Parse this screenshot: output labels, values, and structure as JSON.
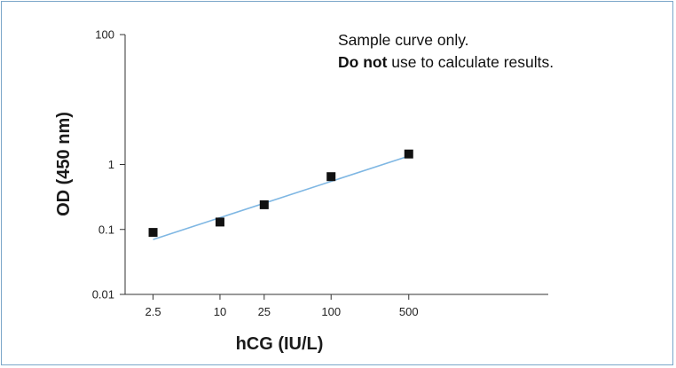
{
  "chart_data": {
    "type": "scatter",
    "xlabel": "hCG (IU/L)",
    "ylabel": "OD (450 nm)",
    "x_scale": "log",
    "y_scale": "log",
    "xlim": [
      1.4,
      9000
    ],
    "ylim": [
      0.01,
      100
    ],
    "x_ticks": [
      2.5,
      10,
      25,
      100,
      500
    ],
    "x_tick_labels": [
      "2.5",
      "10",
      "25",
      "100",
      "500"
    ],
    "y_ticks": [
      0.01,
      0.1,
      1,
      100
    ],
    "y_tick_labels": [
      "0.01",
      "0.1",
      "1",
      "100"
    ],
    "grid": false,
    "points": {
      "x": [
        2.5,
        10,
        25,
        100,
        500
      ],
      "y": [
        0.09,
        0.13,
        0.24,
        0.65,
        1.45
      ]
    },
    "fit_line": {
      "x": [
        2.5,
        500
      ],
      "y": [
        0.07,
        1.35
      ]
    },
    "annotation": {
      "line1": "Sample curve only.",
      "line2_bold": "Do not",
      "line2_rest": " use to calculate results."
    },
    "colors": {
      "marker": "#111111",
      "fit_line": "#7fb7e3",
      "axis": "#333333",
      "frame": "#7aa6c9"
    }
  }
}
